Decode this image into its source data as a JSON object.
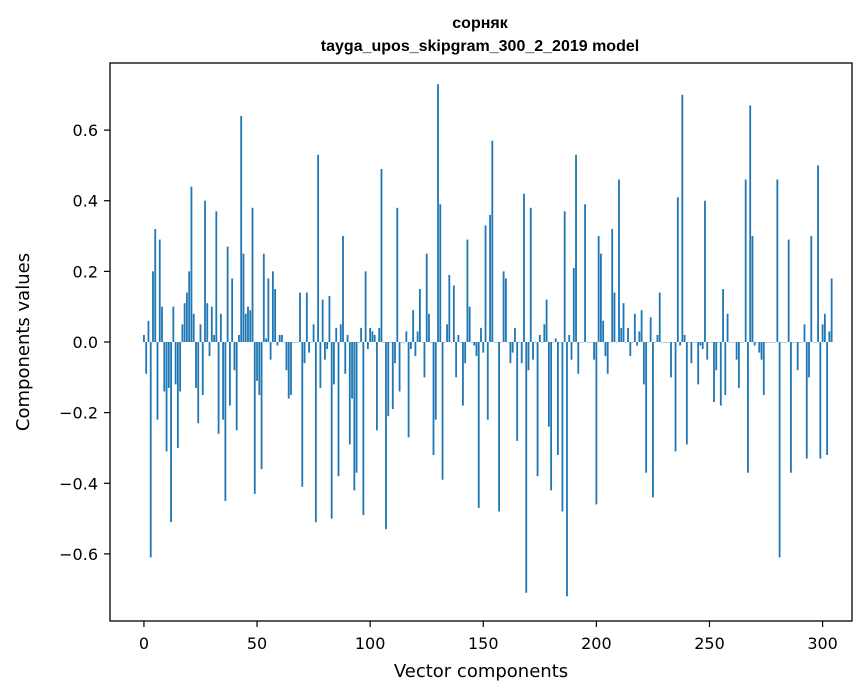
{
  "chart_data": {
    "type": "bar",
    "title": [
      "сорняк",
      "tayga_upos_skipgram_300_2_2019 model"
    ],
    "xlabel": "Vector components",
    "ylabel": "Components values",
    "xlim": [
      -15,
      313
    ],
    "ylim": [
      -0.79,
      0.79
    ],
    "xticks": [
      0,
      50,
      100,
      150,
      200,
      250,
      300
    ],
    "xtick_labels": [
      "0",
      "50",
      "100",
      "150",
      "200",
      "250",
      "300"
    ],
    "yticks": [
      -0.6,
      -0.4,
      -0.2,
      0.0,
      0.2,
      0.4,
      0.6
    ],
    "ytick_labels": [
      "−0.6",
      "−0.4",
      "−0.2",
      "0.0",
      "0.2",
      "0.4",
      "0.6"
    ],
    "grid": false,
    "bar_color": "#1f77b4",
    "series": [
      {
        "values": [
          0.02,
          -0.09,
          0.06,
          -0.61,
          0.2,
          0.32,
          -0.22,
          0.29,
          0.1,
          -0.14,
          -0.31,
          -0.13,
          -0.51,
          0.1,
          -0.12,
          -0.3,
          -0.14,
          0.05,
          0.11,
          0.14,
          0.2,
          0.44,
          0.08,
          -0.13,
          -0.23,
          0.05,
          -0.15,
          0.4,
          0.11,
          -0.04,
          0.1,
          0.02,
          0.37,
          -0.26,
          0.08,
          -0.22,
          -0.45,
          0.27,
          -0.18,
          0.18,
          -0.08,
          -0.25,
          0.02,
          0.64,
          0.25,
          0.08,
          0.1,
          0.09,
          0.38,
          -0.43,
          -0.11,
          -0.15,
          -0.36,
          0.25,
          0.01,
          0.18,
          -0.05,
          0.2,
          0.15,
          -0.01,
          0.02,
          0.02,
          0.0,
          -0.08,
          -0.16,
          -0.15,
          0.0,
          0.0,
          0.0,
          0.14,
          -0.41,
          -0.06,
          0.14,
          -0.03,
          0.0,
          0.05,
          -0.51,
          0.53,
          -0.13,
          0.12,
          -0.05,
          -0.02,
          0.13,
          -0.5,
          -0.12,
          0.04,
          -0.38,
          0.05,
          0.3,
          -0.09,
          0.02,
          -0.29,
          -0.16,
          -0.42,
          -0.37,
          0.0,
          0.04,
          -0.49,
          0.2,
          -0.02,
          0.04,
          0.03,
          0.02,
          -0.25,
          0.04,
          0.49,
          0.0,
          -0.53,
          -0.21,
          0.0,
          -0.19,
          -0.06,
          0.38,
          -0.14,
          0.0,
          0.0,
          0.03,
          -0.27,
          -0.02,
          0.09,
          -0.04,
          0.03,
          0.15,
          0.0,
          -0.1,
          0.25,
          0.08,
          0.0,
          -0.32,
          -0.22,
          0.73,
          0.39,
          -0.39,
          0.0,
          0.05,
          0.19,
          0.0,
          0.16,
          -0.1,
          0.02,
          0.0,
          -0.18,
          -0.06,
          0.29,
          0.1,
          0.0,
          -0.01,
          -0.04,
          -0.47,
          0.04,
          -0.03,
          0.33,
          -0.22,
          0.36,
          0.57,
          0.0,
          0.0,
          -0.48,
          0.0,
          0.2,
          0.18,
          0.0,
          -0.06,
          -0.03,
          0.04,
          -0.28,
          0.0,
          -0.06,
          0.42,
          -0.71,
          -0.08,
          0.38,
          -0.05,
          0.0,
          -0.38,
          0.02,
          0.0,
          0.05,
          0.12,
          -0.24,
          -0.42,
          0.0,
          0.01,
          -0.32,
          0.0,
          -0.48,
          0.37,
          -0.72,
          0.02,
          -0.05,
          0.21,
          0.53,
          -0.09,
          0.0,
          0.0,
          0.39,
          0.0,
          0.0,
          0.0,
          -0.05,
          -0.46,
          0.3,
          0.25,
          0.06,
          -0.04,
          -0.09,
          0.0,
          0.32,
          0.14,
          0.0,
          0.46,
          0.04,
          0.11,
          0.0,
          0.04,
          -0.04,
          0.0,
          0.08,
          -0.01,
          0.03,
          0.09,
          -0.12,
          -0.37,
          0.0,
          0.07,
          -0.44,
          0.0,
          0.02,
          0.14,
          0.0,
          0.0,
          0.0,
          0.0,
          -0.1,
          0.0,
          -0.31,
          0.41,
          -0.01,
          0.7,
          0.02,
          -0.29,
          0.0,
          -0.06,
          0.0,
          0.0,
          -0.12,
          -0.01,
          -0.02,
          0.4,
          -0.05,
          0.0,
          0.0,
          -0.17,
          -0.08,
          0.0,
          -0.18,
          0.15,
          -0.15,
          0.08,
          0.0,
          0.0,
          0.0,
          -0.05,
          -0.13,
          0.0,
          0.0,
          0.46,
          -0.37,
          0.67,
          0.3,
          -0.01,
          0.0,
          -0.03,
          -0.05,
          -0.15,
          0.0,
          0.0,
          0.0,
          0.0,
          0.0,
          0.46,
          -0.61,
          0.0,
          0.0,
          0.0,
          0.29,
          -0.37,
          0.0,
          0.0,
          -0.08,
          0.0,
          0.0,
          0.05,
          -0.33,
          -0.1,
          0.3,
          0.0,
          0.0,
          0.5,
          -0.33,
          0.05,
          0.08,
          -0.32,
          0.03,
          0.18
        ]
      }
    ]
  }
}
